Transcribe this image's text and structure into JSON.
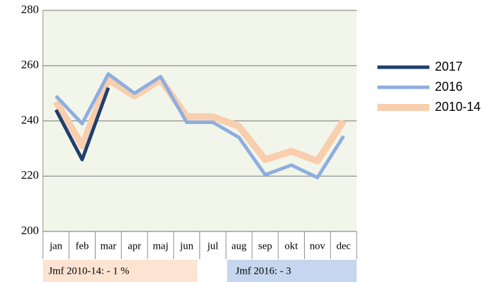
{
  "chart_data": {
    "type": "line",
    "categories": [
      "jan",
      "feb",
      "mar",
      "apr",
      "maj",
      "jun",
      "jul",
      "aug",
      "sep",
      "okt",
      "nov",
      "dec"
    ],
    "series": [
      {
        "name": "2017",
        "color": "#1f3f6e",
        "values": [
          244,
          226,
          252,
          null,
          null,
          null,
          null,
          null,
          null,
          null,
          null,
          null
        ]
      },
      {
        "name": "2016",
        "color": "#8eaee0",
        "values": [
          249,
          239,
          257,
          250,
          256,
          239.5,
          239.5,
          234,
          220.5,
          224,
          219.5,
          234.5
        ]
      },
      {
        "name": "2010-14",
        "color": "#f9ceae",
        "values": [
          247,
          231,
          255,
          249,
          255,
          241.5,
          241.5,
          238,
          226,
          229,
          225.5,
          240
        ]
      }
    ],
    "ylim": [
      200,
      280
    ],
    "yticks": [
      200,
      220,
      240,
      260,
      280
    ],
    "grid": true,
    "legend": "right",
    "annotations": [
      "Jmf 2010-14: - 1 %",
      "Jmf 2016: - 3"
    ]
  }
}
